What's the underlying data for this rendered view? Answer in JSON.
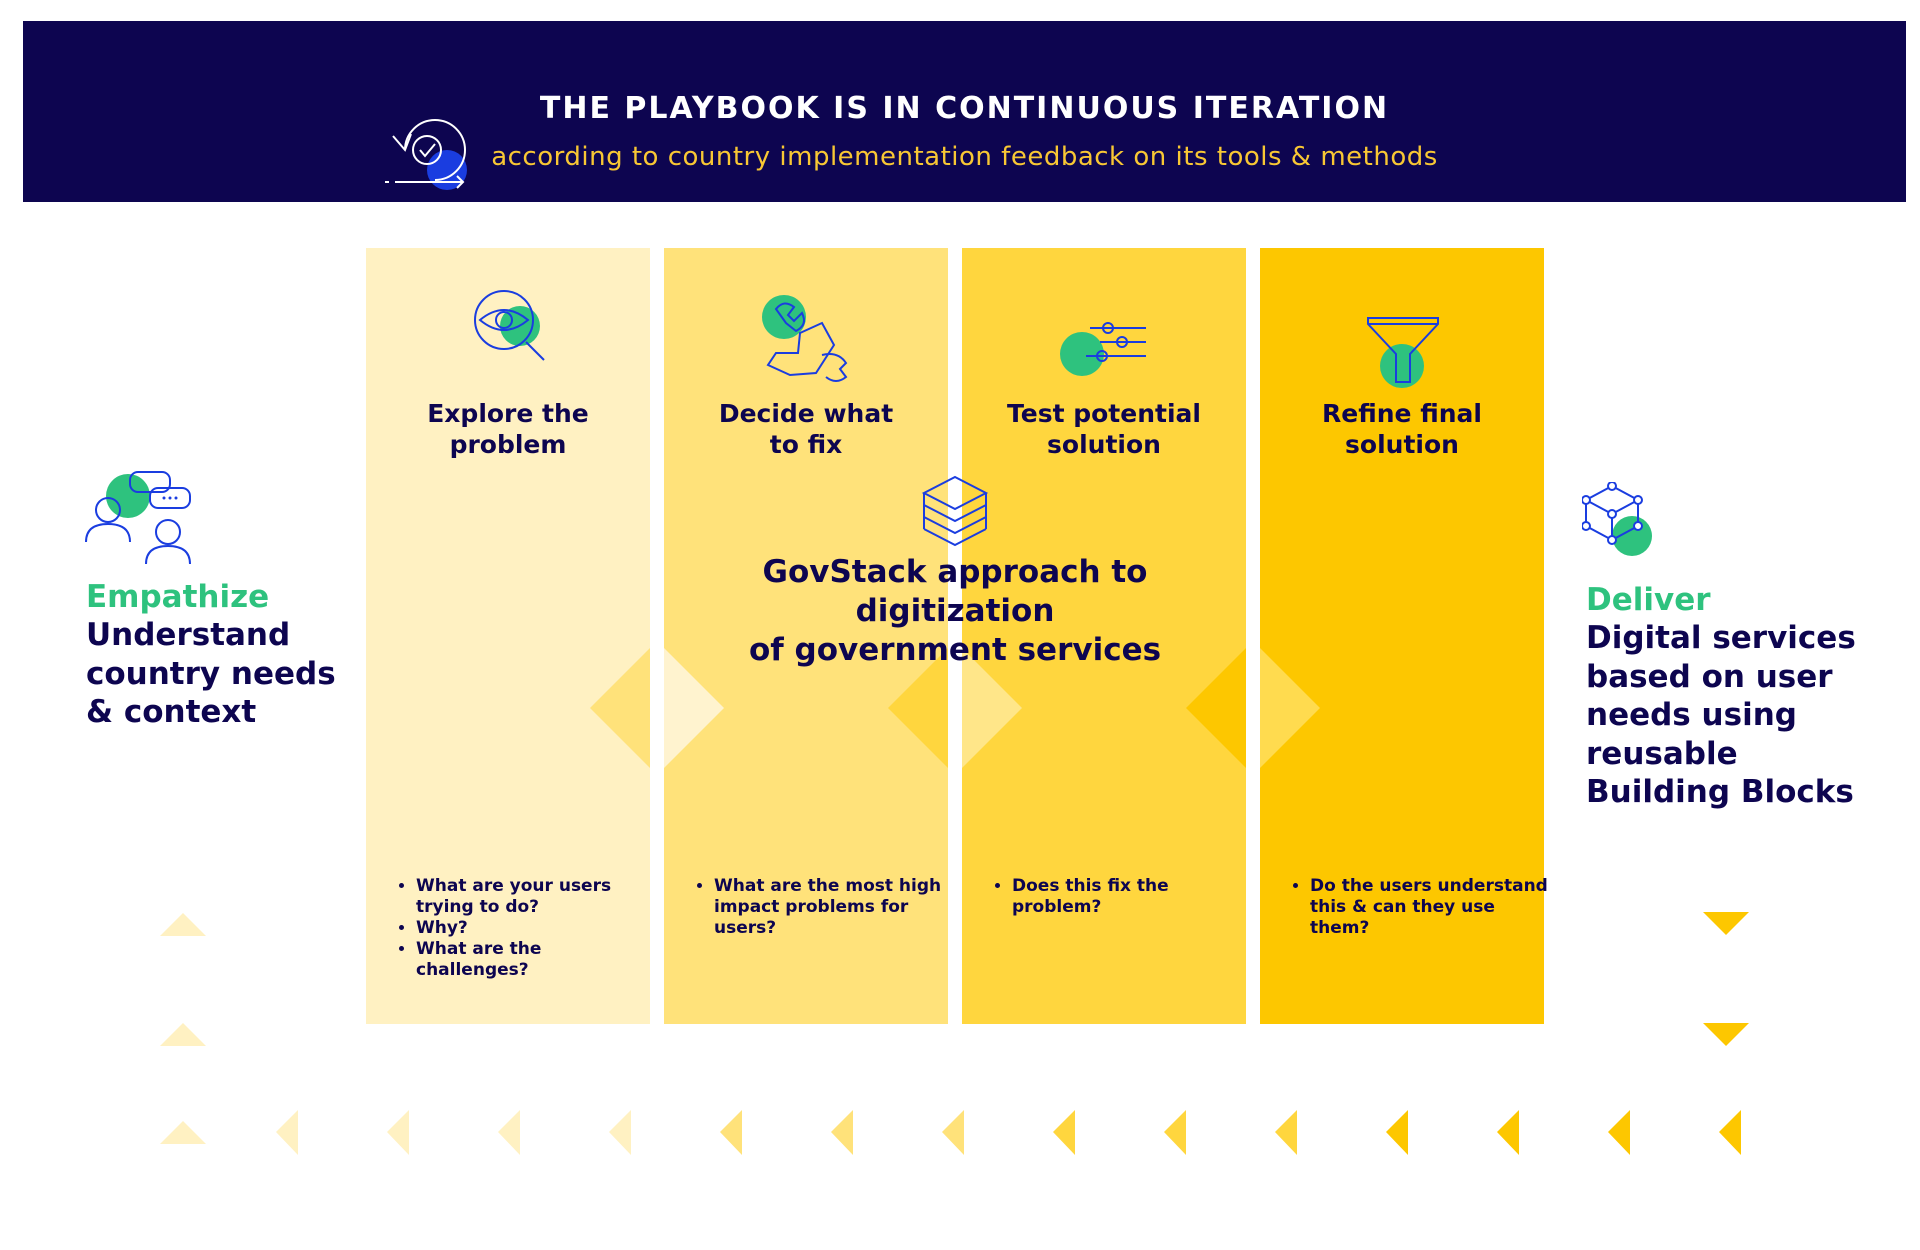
{
  "banner": {
    "title": "THE PLAYBOOK IS IN CONTINUOUS ITERATION",
    "subtitle": "according to country implementation feedback on its tools & methods",
    "icon": "iteration-cycle-icon"
  },
  "center": {
    "line1": "GovStack approach to digitization",
    "line2": "of government services",
    "icon": "layers-stack-icon"
  },
  "empathize": {
    "heading": "Empathize",
    "line1": "Understand",
    "line2": "country needs",
    "line3": "& context",
    "icon": "users-conversation-icon"
  },
  "deliver": {
    "heading": "Deliver",
    "line1": "Digital services",
    "line2": "based on user",
    "line3": "needs using",
    "line4": "reusable",
    "line5": "Building Blocks",
    "icon": "building-block-cube-icon"
  },
  "columns": [
    {
      "title1": "Explore the",
      "title2": "problem",
      "icon": "eye-magnifier-icon",
      "questions": [
        "What are your users trying to do?",
        "Why?",
        "What are the challenges?"
      ],
      "color": "#fff1c2"
    },
    {
      "title1": "Decide what",
      "title2": "to fix",
      "icon": "wrench-hand-icon",
      "questions": [
        "What are the most high impact problems for users?"
      ],
      "color": "#ffe27a"
    },
    {
      "title1": "Test potential",
      "title2": "solution",
      "icon": "sliders-icon",
      "questions": [
        "Does this fix the problem?"
      ],
      "color": "#ffd63e"
    },
    {
      "title1": "Refine final",
      "title2": "solution",
      "icon": "funnel-icon",
      "questions": [
        "Do the users understand this & can they use them?"
      ],
      "color": "#fdc700"
    }
  ],
  "colors": {
    "navy": "#0d0550",
    "accent_yellow": "#f8c734",
    "green": "#2ec27e",
    "blue": "#1a3de0"
  }
}
